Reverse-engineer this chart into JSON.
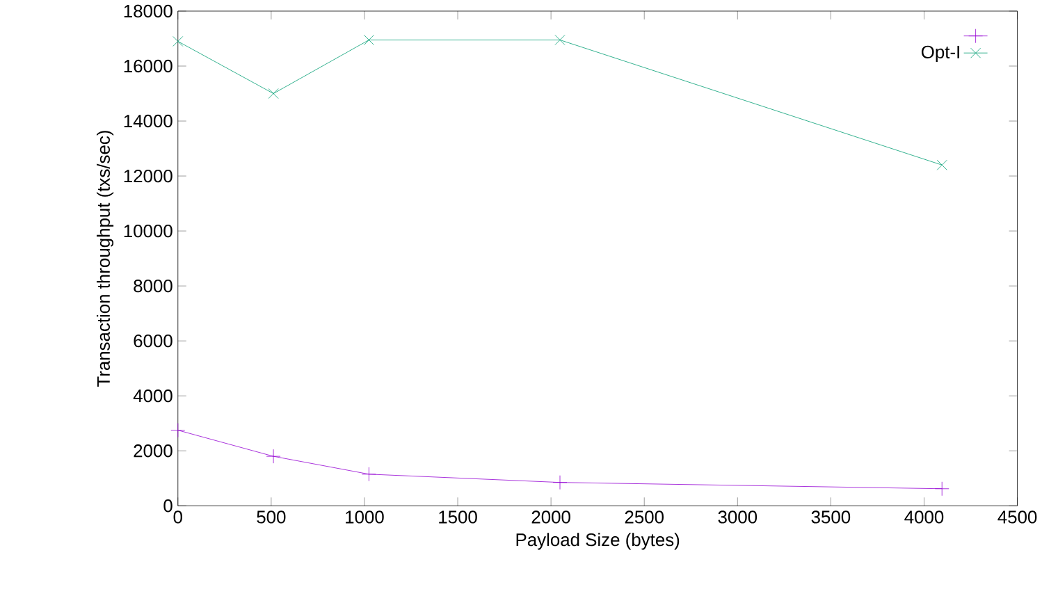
{
  "chart_data": {
    "type": "line",
    "xlabel": "Payload Size (bytes)",
    "ylabel": "Transaction throughput (txs/sec)",
    "xlim": [
      0,
      4500
    ],
    "ylim": [
      0,
      18000
    ],
    "xticks": [
      0,
      500,
      1000,
      1500,
      2000,
      2500,
      3000,
      3500,
      4000,
      4500
    ],
    "yticks": [
      0,
      2000,
      4000,
      6000,
      8000,
      10000,
      12000,
      14000,
      16000,
      18000
    ],
    "legend": "top right",
    "grid": false,
    "line_style": "solid",
    "series": [
      {
        "color": "#9400d3",
        "marker": "plus",
        "x": [
          0,
          512,
          1024,
          2048,
          4096
        ],
        "values": [
          2750,
          1800,
          1150,
          850,
          620
        ]
      },
      {
        "name": "Opt-I",
        "color": "#009e73",
        "marker": "cross",
        "x": [
          0,
          512,
          1024,
          2048,
          4096
        ],
        "values": [
          16900,
          15000,
          16950,
          16950,
          12400
        ]
      }
    ]
  }
}
